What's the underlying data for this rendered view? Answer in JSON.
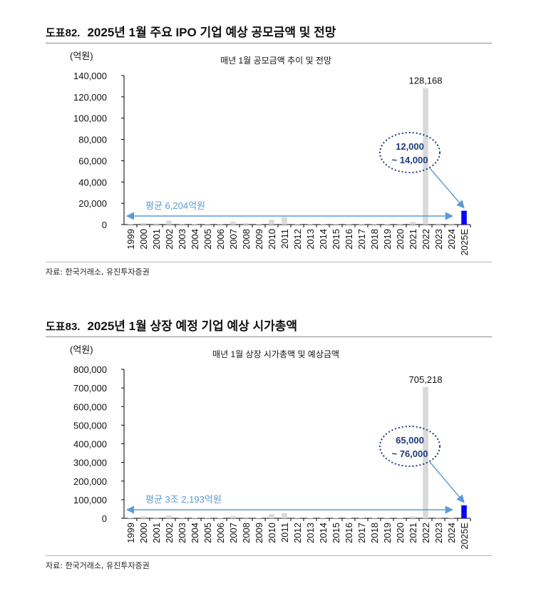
{
  "figures": [
    {
      "label": "도표82.",
      "title": "2025년 1월 주요 IPO 기업 예상 공모금액 및 전망",
      "source": "자료: 한국거래소, 유진투자증권",
      "chart_data": {
        "type": "bar",
        "title": "매년 1월 공모금액 추이 및 전망",
        "unit": "(억원)",
        "categories": [
          "1999",
          "2000",
          "2001",
          "2002",
          "2003",
          "2004",
          "2005",
          "2006",
          "2007",
          "2008",
          "2009",
          "2010",
          "2011",
          "2012",
          "2013",
          "2014",
          "2015",
          "2016",
          "2017",
          "2018",
          "2019",
          "2020",
          "2021",
          "2022",
          "2023",
          "2024",
          "2025E"
        ],
        "values": [
          300,
          1500,
          1000,
          3800,
          800,
          500,
          600,
          500,
          2800,
          1500,
          300,
          4500,
          7000,
          500,
          300,
          500,
          300,
          300,
          400,
          500,
          400,
          300,
          2500,
          128168,
          1000,
          800,
          13000
        ],
        "ylim": [
          0,
          140000
        ],
        "yticks": [
          "0",
          "20,000",
          "40,000",
          "60,000",
          "80,000",
          "100,000",
          "120,000",
          "140,000"
        ],
        "ytick_values": [
          0,
          20000,
          40000,
          60000,
          80000,
          100000,
          120000,
          140000
        ],
        "peak_label": "128,168",
        "average_label": "평균 6,204억원",
        "average_value": 6204,
        "forecast_label_line1": "12,000",
        "forecast_label_line2": "~ 14,000",
        "colors": {
          "bar": "#d9d9d9",
          "highlight": "#0000ff",
          "arrow": "#5b9bd5",
          "ellipse": "#1f3a7a",
          "forecast_text": "#1f3a7a"
        }
      }
    },
    {
      "label": "도표83.",
      "title": "2025년 1월 상장 예정 기업 예상 시가총액",
      "source": "자료: 한국거래소, 유진투자증권",
      "chart_data": {
        "type": "bar",
        "title": "매년 1월 상장 시가총액 및 예상금액",
        "unit": "(억원)",
        "categories": [
          "1999",
          "2000",
          "2001",
          "2002",
          "2003",
          "2004",
          "2005",
          "2006",
          "2007",
          "2008",
          "2009",
          "2010",
          "2011",
          "2012",
          "2013",
          "2014",
          "2015",
          "2016",
          "2017",
          "2018",
          "2019",
          "2020",
          "2021",
          "2022",
          "2023",
          "2024",
          "2025E"
        ],
        "values": [
          3000,
          10000,
          5000,
          15000,
          4000,
          3000,
          3000,
          2000,
          12000,
          6000,
          2000,
          22000,
          28000,
          3000,
          2000,
          3000,
          2000,
          2000,
          4000,
          3000,
          3000,
          2000,
          10000,
          705218,
          5000,
          4000,
          70000
        ],
        "ylim": [
          0,
          800000
        ],
        "yticks": [
          "0",
          "100,000",
          "200,000",
          "300,000",
          "400,000",
          "500,000",
          "600,000",
          "700,000",
          "800,000"
        ],
        "ytick_values": [
          0,
          100000,
          200000,
          300000,
          400000,
          500000,
          600000,
          700000,
          800000
        ],
        "peak_label": "705,218",
        "average_label": "평균  3조 2,193억원",
        "average_value": 32193,
        "forecast_label_line1": "65,000",
        "forecast_label_line2": "~ 76,000",
        "colors": {
          "bar": "#d9d9d9",
          "highlight": "#0000ff",
          "arrow": "#5b9bd5",
          "ellipse": "#1f3a7a",
          "forecast_text": "#1f3a7a"
        }
      }
    }
  ]
}
